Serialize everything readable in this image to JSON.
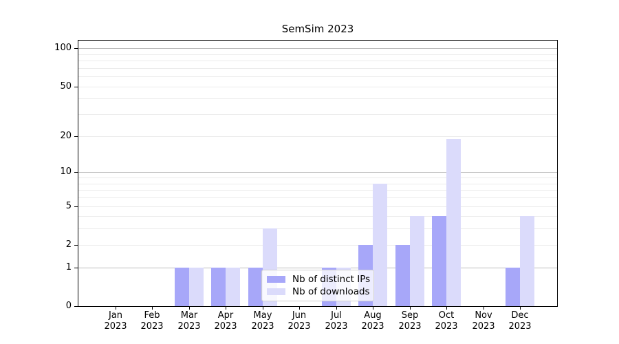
{
  "title": "SemSim 2023",
  "colors": {
    "ips_bar": "#a7a7f9",
    "downloads_bar": "#dbdbfb",
    "grid_major": "#bcbcbc",
    "grid_minor": "#ebebeb",
    "axis": "#000000",
    "legend_border": "#cfcfcf"
  },
  "legend": {
    "items": [
      {
        "label": "Nb of distinct IPs",
        "series": "ips"
      },
      {
        "label": "Nb of downloads",
        "series": "downloads"
      }
    ]
  },
  "x_axis": {
    "months": [
      "Jan",
      "Feb",
      "Mar",
      "Apr",
      "May",
      "Jun",
      "Jul",
      "Aug",
      "Sep",
      "Oct",
      "Nov",
      "Dec"
    ],
    "year": "2023"
  },
  "y_axis": {
    "tick_values": [
      0,
      1,
      2,
      5,
      10,
      20,
      50,
      100
    ]
  },
  "chart_data": {
    "type": "bar",
    "title": "SemSim 2023",
    "categories": [
      "Jan 2023",
      "Feb 2023",
      "Mar 2023",
      "Apr 2023",
      "May 2023",
      "Jun 2023",
      "Jul 2023",
      "Aug 2023",
      "Sep 2023",
      "Oct 2023",
      "Nov 2023",
      "Dec 2023"
    ],
    "series": [
      {
        "name": "Nb of distinct IPs",
        "color": "#a7a7f9",
        "values": [
          0,
          0,
          1,
          1,
          1,
          0,
          1,
          2,
          2,
          4,
          0,
          1
        ]
      },
      {
        "name": "Nb of downloads",
        "color": "#dbdbfb",
        "values": [
          0,
          0,
          1,
          1,
          3,
          0,
          1,
          8,
          4,
          19,
          0,
          4
        ]
      }
    ],
    "xlabel": "",
    "ylabel": "",
    "yscale": "log1p",
    "ylim": [
      0,
      115
    ],
    "yticks": [
      0,
      1,
      2,
      5,
      10,
      20,
      50,
      100
    ],
    "grid": {
      "orientation": "horizontal",
      "major": [
        1,
        10,
        100
      ],
      "minor": [
        2,
        3,
        4,
        5,
        6,
        7,
        8,
        9,
        20,
        30,
        40,
        50,
        60,
        70,
        80,
        90
      ]
    },
    "legend_position": "inside lower-center"
  }
}
